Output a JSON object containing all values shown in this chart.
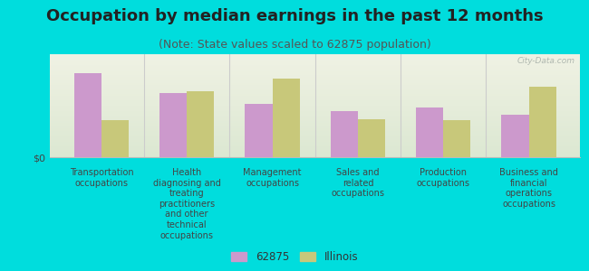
{
  "title": "Occupation by median earnings in the past 12 months",
  "subtitle": "(Note: State values scaled to 62875 population)",
  "categories": [
    "Transportation\noccupations",
    "Health\ndiagnosing and\ntreating\npractitioners\nand other\ntechnical\noccupations",
    "Management\noccupations",
    "Sales and\nrelated\noccupations",
    "Production\noccupations",
    "Business and\nfinancial\noperations\noccupations"
  ],
  "values_62875": [
    0.82,
    0.62,
    0.52,
    0.45,
    0.48,
    0.41
  ],
  "values_illinois": [
    0.36,
    0.64,
    0.76,
    0.37,
    0.36,
    0.68
  ],
  "color_62875": "#cc99cc",
  "color_illinois": "#c8c87a",
  "bg_outer": "#00dddd",
  "bg_plot_top": "#f0f0e0",
  "bg_plot_bottom": "#dde8d0",
  "ylabel": "$0",
  "legend_62875": "62875",
  "legend_illinois": "Illinois",
  "bar_width": 0.32,
  "title_fontsize": 13,
  "subtitle_fontsize": 9,
  "tick_fontsize": 7,
  "watermark": "City-Data.com"
}
